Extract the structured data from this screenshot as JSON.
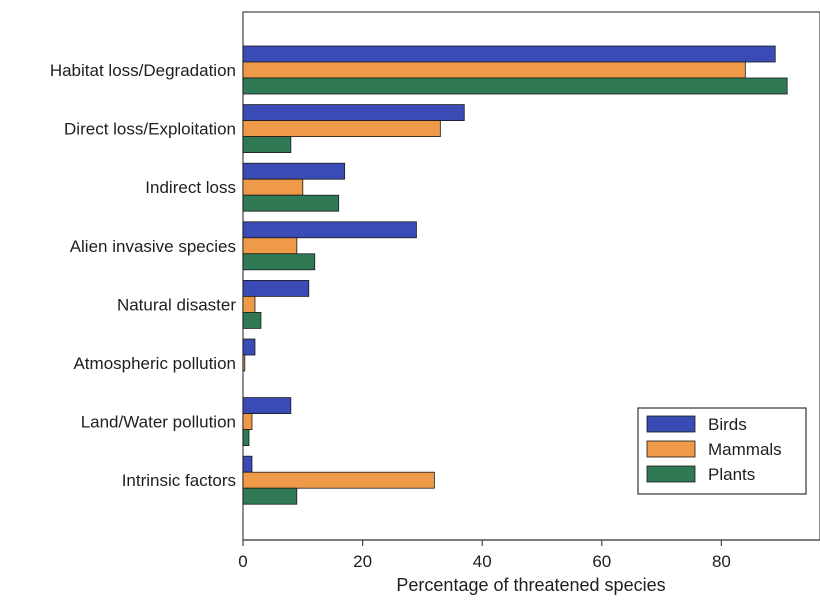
{
  "chart_data": {
    "type": "bar",
    "orientation": "horizontal",
    "categories": [
      "Habitat loss/Degradation",
      "Direct loss/Exploitation",
      "Indirect loss",
      "Alien invasive species",
      "Natural disaster",
      "Atmospheric pollution",
      "Land/Water pollution",
      "Intrinsic factors"
    ],
    "series": [
      {
        "name": "Birds",
        "color": "#3a4bb5",
        "values": [
          89,
          37,
          17,
          29,
          11,
          2,
          8,
          1.5
        ]
      },
      {
        "name": "Mammals",
        "color": "#ef9a48",
        "values": [
          84,
          33,
          10,
          9,
          2,
          0.3,
          1.5,
          32
        ]
      },
      {
        "name": "Plants",
        "color": "#2f7a55",
        "values": [
          91,
          8,
          16,
          12,
          3,
          0,
          1,
          9
        ]
      }
    ],
    "title": "",
    "xlabel": "Percentage of threatened species",
    "ylabel": "",
    "xlim": [
      0,
      97
    ],
    "xticks": [
      "0",
      "20",
      "40",
      "60",
      "80"
    ],
    "grid": false,
    "legend": "bottom-right"
  }
}
